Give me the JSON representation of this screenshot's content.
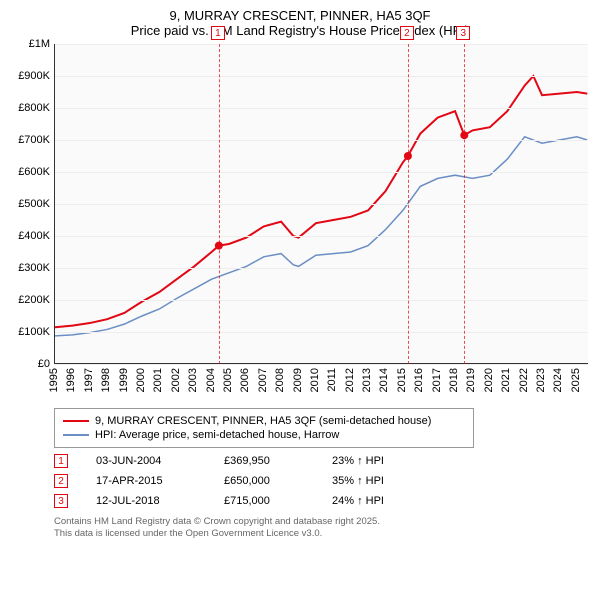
{
  "title_line1": "9, MURRAY CRESCENT, PINNER, HA5 3QF",
  "title_line2": "Price paid vs. HM Land Registry's House Price Index (HPI)",
  "chart": {
    "type": "line",
    "background_color": "#fafafa",
    "grid_color": "#eeeeee",
    "axis_color": "#333333",
    "x": {
      "min": 1995,
      "max": 2025.7,
      "ticks": [
        1995,
        1996,
        1997,
        1998,
        1999,
        2000,
        2001,
        2002,
        2003,
        2004,
        2005,
        2006,
        2007,
        2008,
        2009,
        2010,
        2011,
        2012,
        2013,
        2014,
        2015,
        2016,
        2017,
        2018,
        2019,
        2020,
        2021,
        2022,
        2023,
        2024,
        2025
      ],
      "label_fontsize": 11,
      "label_rotation": -90
    },
    "y": {
      "min": 0,
      "max": 1000000,
      "ticks": [
        0,
        100000,
        200000,
        300000,
        400000,
        500000,
        600000,
        700000,
        800000,
        900000,
        1000000
      ],
      "tick_labels": [
        "£0",
        "£100K",
        "£200K",
        "£300K",
        "£400K",
        "£500K",
        "£600K",
        "£700K",
        "£800K",
        "£900K",
        "£1M"
      ],
      "label_fontsize": 11
    },
    "series": [
      {
        "name": "9, MURRAY CRESCENT, PINNER, HA5 3QF (semi-detached house)",
        "color": "#e30613",
        "line_width": 2,
        "points": [
          [
            1995,
            115000
          ],
          [
            1996,
            120000
          ],
          [
            1997,
            128000
          ],
          [
            1998,
            140000
          ],
          [
            1999,
            160000
          ],
          [
            2000,
            195000
          ],
          [
            2001,
            225000
          ],
          [
            2002,
            265000
          ],
          [
            2003,
            305000
          ],
          [
            2004,
            350000
          ],
          [
            2004.42,
            369950
          ],
          [
            2005,
            375000
          ],
          [
            2006,
            395000
          ],
          [
            2007,
            430000
          ],
          [
            2008,
            445000
          ],
          [
            2008.7,
            400000
          ],
          [
            2009,
            395000
          ],
          [
            2010,
            440000
          ],
          [
            2011,
            450000
          ],
          [
            2012,
            460000
          ],
          [
            2013,
            480000
          ],
          [
            2014,
            540000
          ],
          [
            2015,
            630000
          ],
          [
            2015.29,
            650000
          ],
          [
            2016,
            720000
          ],
          [
            2017,
            770000
          ],
          [
            2018,
            790000
          ],
          [
            2018.53,
            715000
          ],
          [
            2019,
            730000
          ],
          [
            2020,
            740000
          ],
          [
            2021,
            790000
          ],
          [
            2022,
            870000
          ],
          [
            2022.5,
            900000
          ],
          [
            2023,
            840000
          ],
          [
            2024,
            845000
          ],
          [
            2025,
            850000
          ],
          [
            2025.6,
            845000
          ]
        ]
      },
      {
        "name": "HPI: Average price, semi-detached house, Harrow",
        "color": "#6b8fc5",
        "line_width": 1.5,
        "points": [
          [
            1995,
            88000
          ],
          [
            1996,
            91000
          ],
          [
            1997,
            98000
          ],
          [
            1998,
            108000
          ],
          [
            1999,
            125000
          ],
          [
            2000,
            150000
          ],
          [
            2001,
            172000
          ],
          [
            2002,
            205000
          ],
          [
            2003,
            235000
          ],
          [
            2004,
            265000
          ],
          [
            2005,
            285000
          ],
          [
            2006,
            305000
          ],
          [
            2007,
            335000
          ],
          [
            2008,
            345000
          ],
          [
            2008.7,
            310000
          ],
          [
            2009,
            305000
          ],
          [
            2010,
            340000
          ],
          [
            2011,
            345000
          ],
          [
            2012,
            350000
          ],
          [
            2013,
            370000
          ],
          [
            2014,
            420000
          ],
          [
            2015,
            480000
          ],
          [
            2016,
            555000
          ],
          [
            2017,
            580000
          ],
          [
            2018,
            590000
          ],
          [
            2019,
            580000
          ],
          [
            2020,
            590000
          ],
          [
            2021,
            640000
          ],
          [
            2022,
            710000
          ],
          [
            2023,
            690000
          ],
          [
            2024,
            700000
          ],
          [
            2025,
            710000
          ],
          [
            2025.6,
            700000
          ]
        ]
      }
    ],
    "sale_markers": [
      {
        "n": "1",
        "x": 2004.42,
        "y": 369950
      },
      {
        "n": "2",
        "x": 2015.29,
        "y": 650000
      },
      {
        "n": "3",
        "x": 2018.53,
        "y": 715000
      }
    ]
  },
  "legend": {
    "border_color": "#999999",
    "items": [
      {
        "color": "#e30613",
        "label": "9, MURRAY CRESCENT, PINNER, HA5 3QF (semi-detached house)"
      },
      {
        "color": "#6b8fc5",
        "label": "HPI: Average price, semi-detached house, Harrow"
      }
    ]
  },
  "sales_table": {
    "marker_border": "#e30613",
    "marker_text": "#e30613",
    "rows": [
      {
        "n": "1",
        "date": "03-JUN-2004",
        "price": "£369,950",
        "delta": "23% ↑ HPI"
      },
      {
        "n": "2",
        "date": "17-APR-2015",
        "price": "£650,000",
        "delta": "35% ↑ HPI"
      },
      {
        "n": "3",
        "date": "12-JUL-2018",
        "price": "£715,000",
        "delta": "24% ↑ HPI"
      }
    ]
  },
  "attribution": {
    "line1": "Contains HM Land Registry data © Crown copyright and database right 2025.",
    "line2": "This data is licensed under the Open Government Licence v3.0."
  }
}
